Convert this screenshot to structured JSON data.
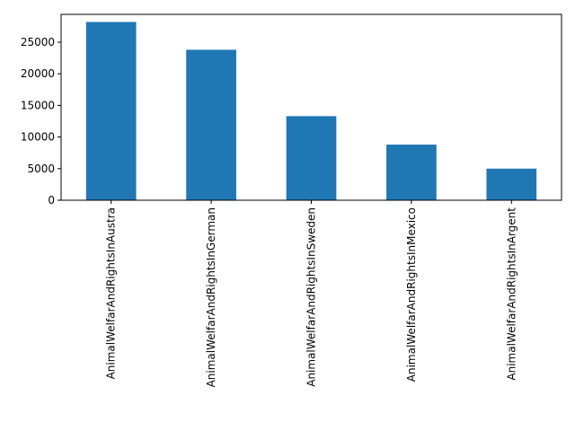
{
  "chart_data": {
    "type": "bar",
    "title": "",
    "xlabel": "",
    "ylabel": "",
    "categories": [
      "AnimalWelfarAndRightsInAustra",
      "AnimalWelfarAndRightsInGerman",
      "AnimalWelfarAndRightsInSweden",
      "AnimalWelfarAndRightsInMexico",
      "AnimalWelfarAndRightsInArgent"
    ],
    "values": [
      28200,
      23800,
      13300,
      8800,
      5000
    ],
    "ylim": [
      0,
      29400
    ],
    "yticks": [
      0,
      5000,
      10000,
      15000,
      20000,
      25000
    ],
    "bar_color": "#1f77b4",
    "grid": false,
    "legend": "none"
  }
}
